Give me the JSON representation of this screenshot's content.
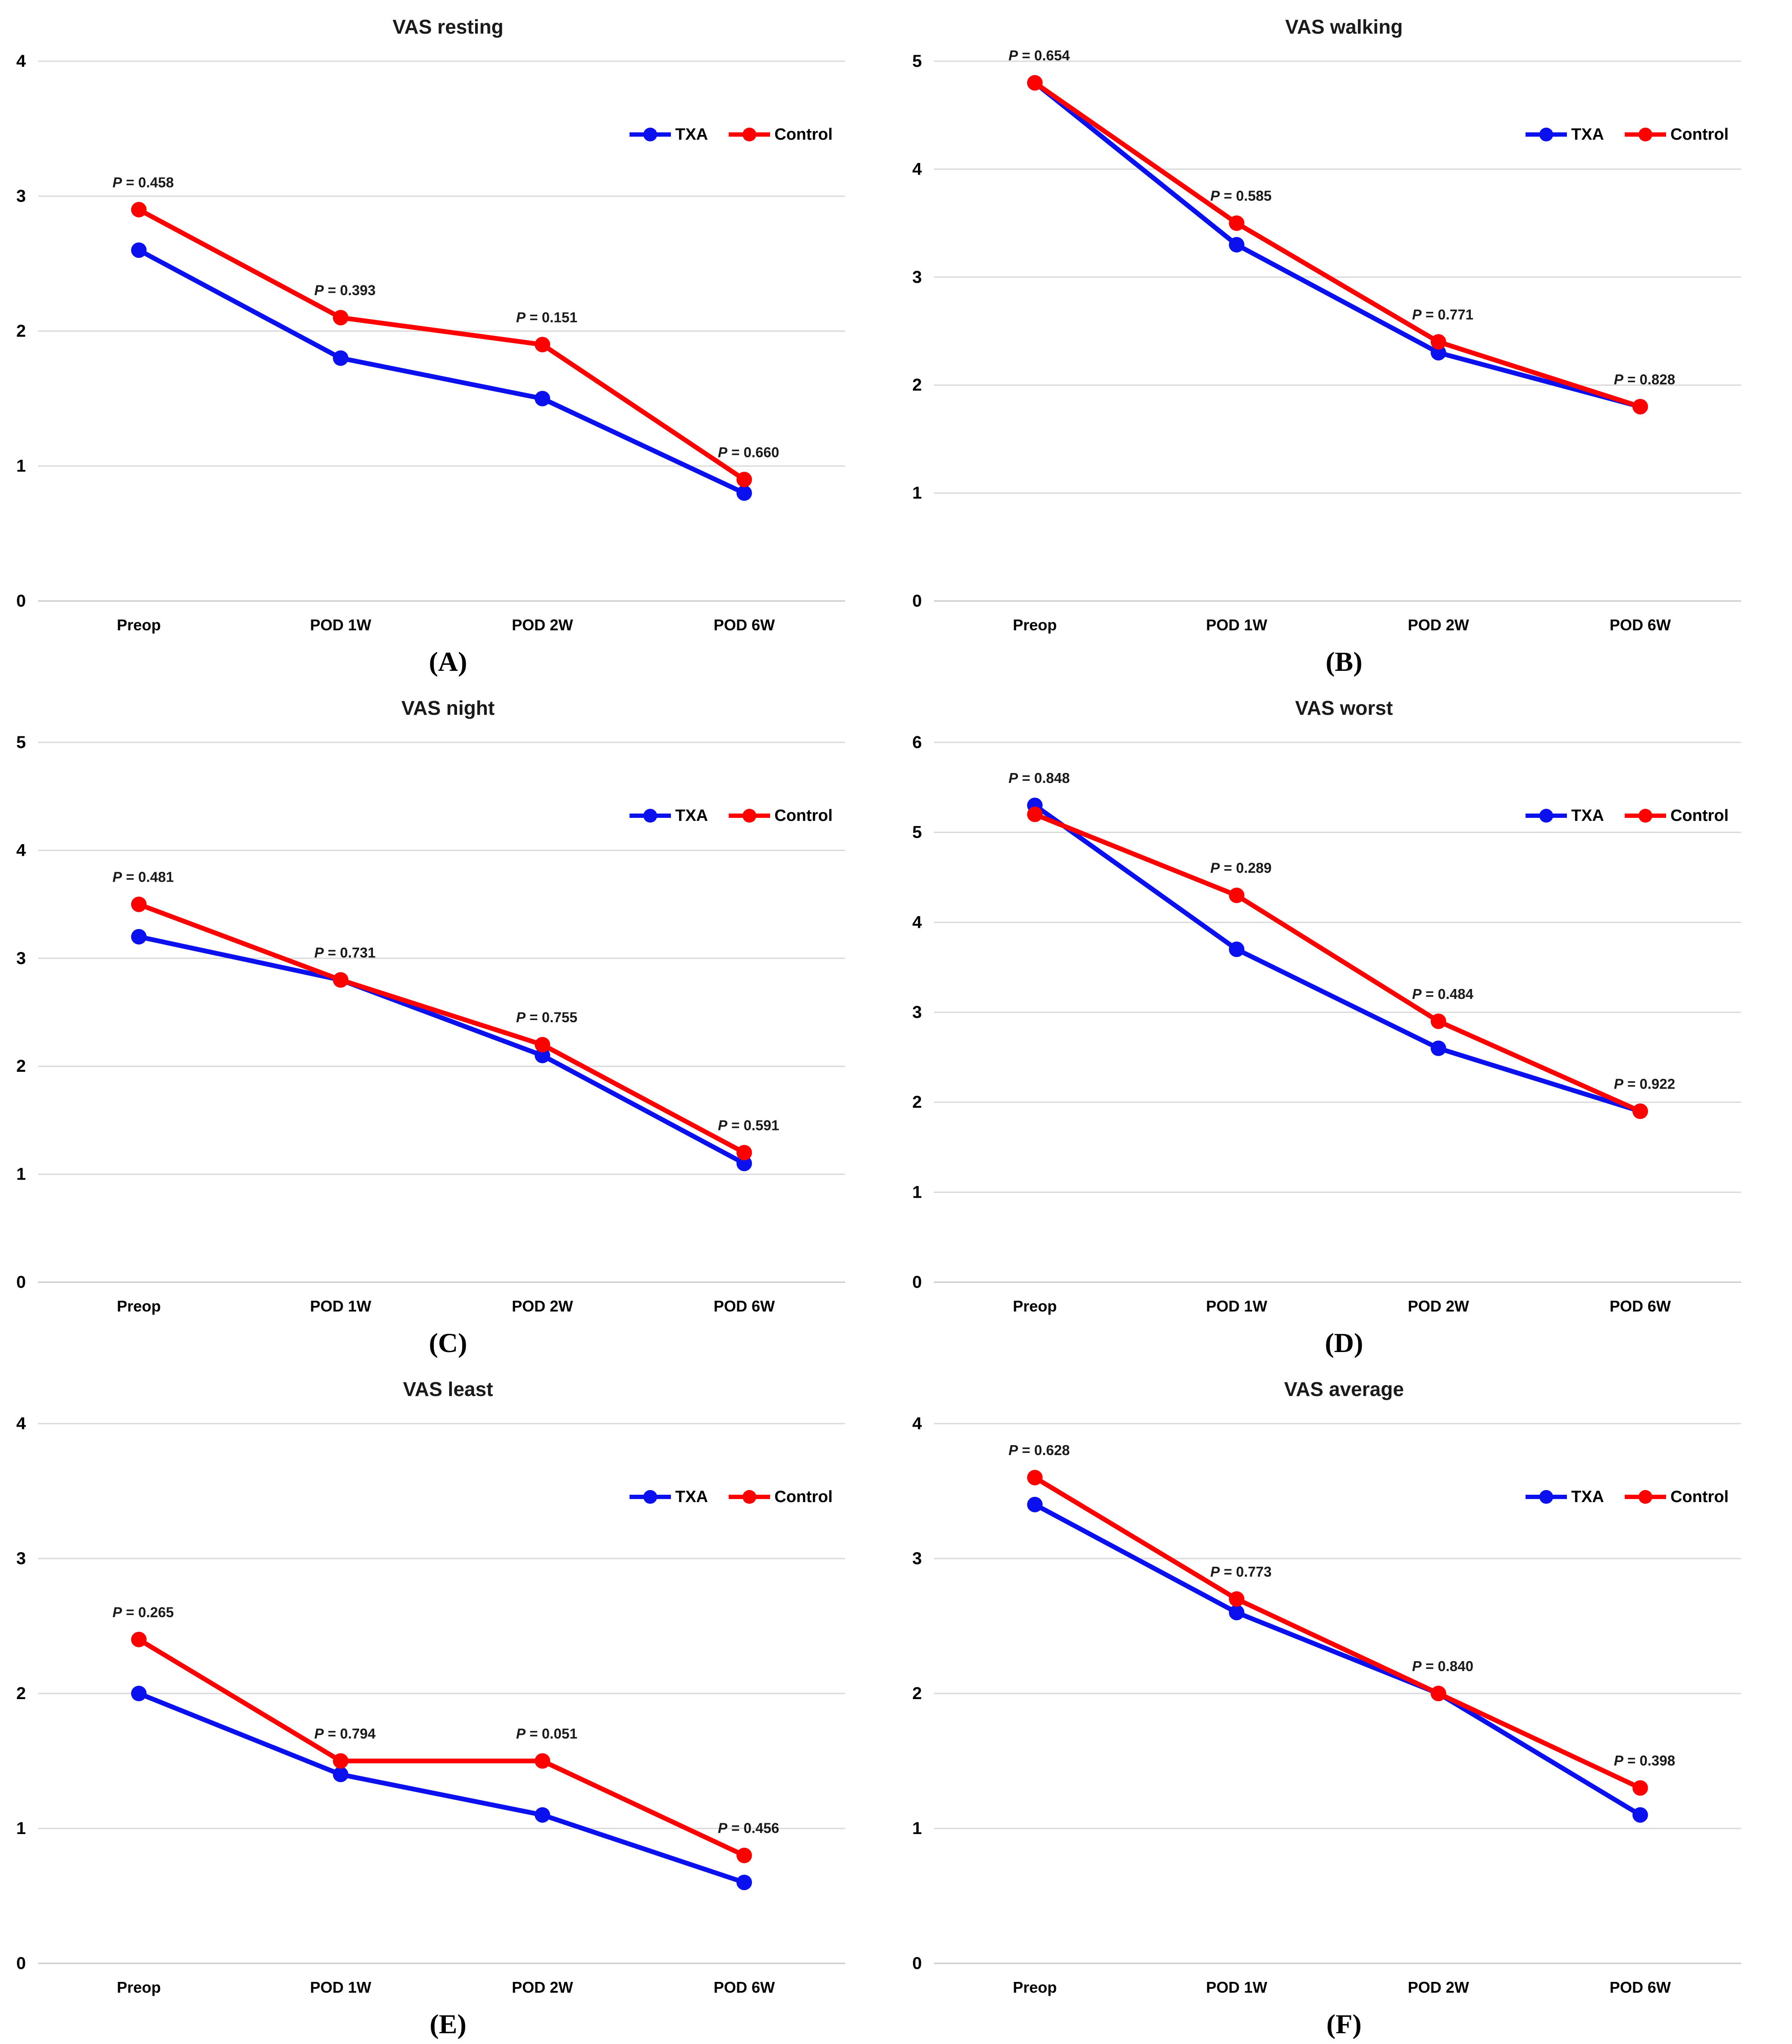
{
  "figure": {
    "background": "#ffffff",
    "p_label_prefix": "P",
    "p_label_separator": " = "
  },
  "colors": {
    "txa": "#0a10ee",
    "control": "#fe0000",
    "gridline": "#d9d9d9",
    "zero_line": "#c8c8c8",
    "title_text": "#1a1a1a",
    "tick_text": "#000000",
    "p_text": "#1a1a1a",
    "caption_text": "#000000"
  },
  "legend": {
    "txa_label": "TXA",
    "control_label": "Control"
  },
  "x_categories": [
    "Preop",
    "POD 1W",
    "POD 2W",
    "POD 6W"
  ],
  "chart_data": [
    {
      "type": "line",
      "panel_letter": "A",
      "caption": "(A)",
      "title": "VAS resting",
      "categories": [
        "Preop",
        "POD 1W",
        "POD 2W",
        "POD 6W"
      ],
      "ylim": [
        0,
        4
      ],
      "yticks": [
        0,
        1,
        2,
        3,
        4
      ],
      "grid": true,
      "legend_position": "right-upper",
      "series": [
        {
          "name": "TXA",
          "color_key": "txa",
          "values": [
            2.6,
            1.8,
            1.5,
            0.8
          ]
        },
        {
          "name": "Control",
          "color_key": "control",
          "values": [
            2.9,
            2.1,
            1.9,
            0.9
          ]
        }
      ],
      "p_values": [
        "0.458",
        "0.393",
        "0.151",
        "0.660"
      ]
    },
    {
      "type": "line",
      "panel_letter": "B",
      "caption": "(B)",
      "title": "VAS walking",
      "categories": [
        "Preop",
        "POD 1W",
        "POD 2W",
        "POD 6W"
      ],
      "ylim": [
        0,
        5
      ],
      "yticks": [
        0,
        1,
        2,
        3,
        4,
        5
      ],
      "grid": true,
      "legend_position": "right-upper",
      "series": [
        {
          "name": "TXA",
          "color_key": "txa",
          "values": [
            4.8,
            3.3,
            2.3,
            1.8
          ]
        },
        {
          "name": "Control",
          "color_key": "control",
          "values": [
            4.8,
            3.5,
            2.4,
            1.8
          ]
        }
      ],
      "p_values": [
        "0.654",
        "0.585",
        "0.771",
        "0.828"
      ]
    },
    {
      "type": "line",
      "panel_letter": "C",
      "caption": "(C)",
      "title": "VAS night",
      "categories": [
        "Preop",
        "POD 1W",
        "POD 2W",
        "POD 6W"
      ],
      "ylim": [
        0,
        5
      ],
      "yticks": [
        0,
        1,
        2,
        3,
        4,
        5
      ],
      "grid": true,
      "legend_position": "right-upper",
      "series": [
        {
          "name": "TXA",
          "color_key": "txa",
          "values": [
            3.2,
            2.8,
            2.1,
            1.1
          ]
        },
        {
          "name": "Control",
          "color_key": "control",
          "values": [
            3.5,
            2.8,
            2.2,
            1.2
          ]
        }
      ],
      "p_values": [
        "0.481",
        "0.731",
        "0.755",
        "0.591"
      ]
    },
    {
      "type": "line",
      "panel_letter": "D",
      "caption": "(D)",
      "title": "VAS worst",
      "categories": [
        "Preop",
        "POD 1W",
        "POD 2W",
        "POD 6W"
      ],
      "ylim": [
        0,
        6
      ],
      "yticks": [
        0,
        1,
        2,
        3,
        4,
        5,
        6
      ],
      "grid": true,
      "legend_position": "right-upper",
      "series": [
        {
          "name": "TXA",
          "color_key": "txa",
          "values": [
            5.3,
            3.7,
            2.6,
            1.9
          ]
        },
        {
          "name": "Control",
          "color_key": "control",
          "values": [
            5.2,
            4.3,
            2.9,
            1.9
          ]
        }
      ],
      "p_values": [
        "0.848",
        "0.289",
        "0.484",
        "0.922"
      ]
    },
    {
      "type": "line",
      "panel_letter": "E",
      "caption": "(E)",
      "title": "VAS least",
      "categories": [
        "Preop",
        "POD 1W",
        "POD 2W",
        "POD 6W"
      ],
      "ylim": [
        0,
        4
      ],
      "yticks": [
        0,
        1,
        2,
        3,
        4
      ],
      "grid": true,
      "legend_position": "right-upper",
      "series": [
        {
          "name": "TXA",
          "color_key": "txa",
          "values": [
            2.0,
            1.4,
            1.1,
            0.6
          ]
        },
        {
          "name": "Control",
          "color_key": "control",
          "values": [
            2.4,
            1.5,
            1.5,
            0.8
          ]
        }
      ],
      "p_values": [
        "0.265",
        "0.794",
        "0.051",
        "0.456"
      ]
    },
    {
      "type": "line",
      "panel_letter": "F",
      "caption": "(F)",
      "title": "VAS average",
      "categories": [
        "Preop",
        "POD 1W",
        "POD 2W",
        "POD 6W"
      ],
      "ylim": [
        0,
        4
      ],
      "yticks": [
        0,
        1,
        2,
        3,
        4
      ],
      "grid": true,
      "legend_position": "right-upper",
      "series": [
        {
          "name": "TXA",
          "color_key": "txa",
          "values": [
            3.4,
            2.6,
            2.0,
            1.1
          ]
        },
        {
          "name": "Control",
          "color_key": "control",
          "values": [
            3.6,
            2.7,
            2.0,
            1.3
          ]
        }
      ],
      "p_values": [
        "0.628",
        "0.773",
        "0.840",
        "0.398"
      ]
    }
  ]
}
